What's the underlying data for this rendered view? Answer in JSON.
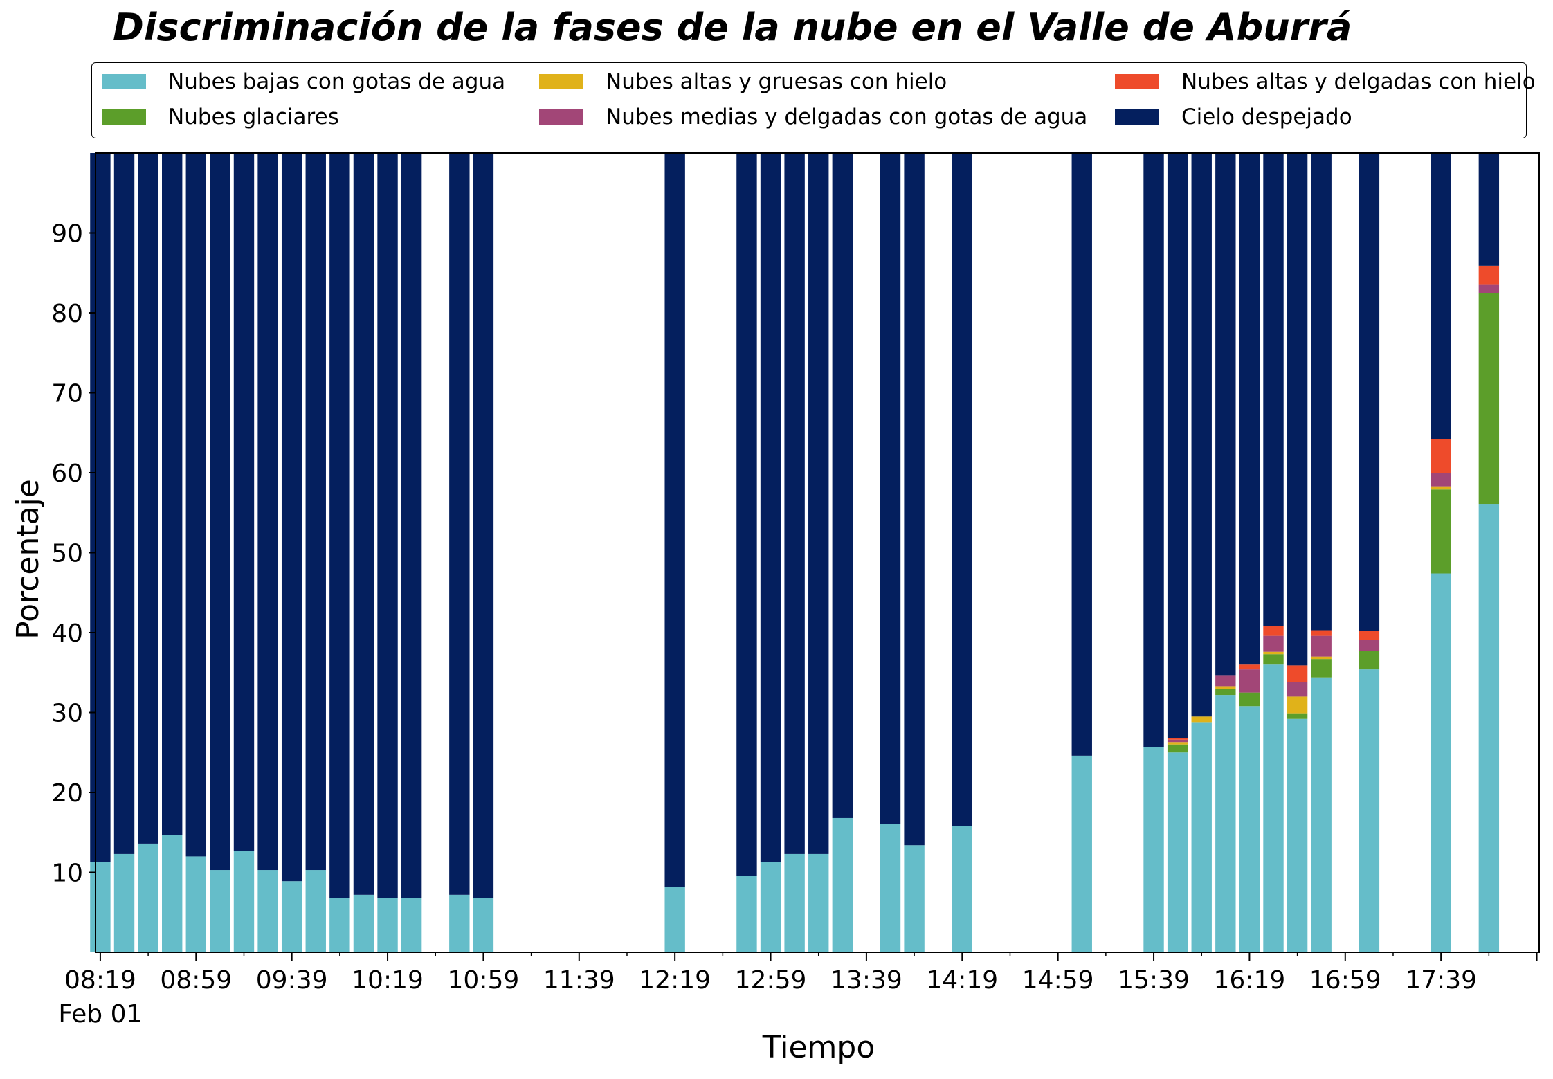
{
  "chart_data": {
    "type": "bar",
    "stacked": true,
    "title": "Discriminación de la fases de la nube en el Valle de Aburrá",
    "xlabel": "Tiempo",
    "ylabel": "Porcentaje",
    "ylim": [
      0,
      100
    ],
    "yticks": [
      10,
      20,
      30,
      40,
      50,
      60,
      70,
      80,
      90
    ],
    "x_ticks": [
      "08:19",
      "08:59",
      "09:39",
      "10:19",
      "10:59",
      "11:39",
      "12:19",
      "12:59",
      "13:39",
      "14:19",
      "14:59",
      "15:39",
      "16:19",
      "16:59",
      "17:39"
    ],
    "x_date_label": "Feb 01",
    "x_range_minutes": [
      "08:17",
      "18:20"
    ],
    "legend_position": "top",
    "categories": [
      "08:19",
      "08:29",
      "08:39",
      "08:49",
      "08:59",
      "09:09",
      "09:19",
      "09:29",
      "09:39",
      "09:49",
      "09:59",
      "10:09",
      "10:19",
      "10:29",
      "10:49",
      "10:59",
      "12:19",
      "12:49",
      "12:59",
      "13:09",
      "13:19",
      "13:29",
      "13:49",
      "13:59",
      "14:19",
      "15:09",
      "15:39",
      "15:49",
      "15:59",
      "16:09",
      "16:19",
      "16:29",
      "16:39",
      "16:49",
      "17:09",
      "17:39",
      "17:59"
    ],
    "series": [
      {
        "name": "Nubes bajas con gotas de agua",
        "color": "#65BDC9",
        "values": [
          11.3,
          12.3,
          13.6,
          14.7,
          12,
          10.3,
          12.7,
          10.3,
          8.9,
          10.3,
          6.8,
          7.2,
          6.8,
          6.8,
          7.2,
          6.8,
          8.2,
          9.6,
          11.3,
          12.3,
          12.3,
          16.8,
          16.1,
          13.4,
          15.8,
          24.6,
          25.7,
          25,
          28.8,
          32.2,
          30.8,
          36,
          29.2,
          34.4,
          35.4,
          47.4,
          56.1
        ]
      },
      {
        "name": "Nubes glaciares",
        "color": "#5C9E2A",
        "values": [
          0,
          0,
          0,
          0,
          0,
          0,
          0,
          0,
          0,
          0,
          0,
          0,
          0,
          0,
          0,
          0,
          0,
          0,
          0,
          0,
          0,
          0,
          0,
          0,
          0,
          0,
          0,
          1,
          0,
          0.7,
          1.7,
          1.3,
          0.7,
          2.3,
          2.3,
          10.5,
          26.4
        ]
      },
      {
        "name": "Nubes altas y gruesas con hielo",
        "color": "#E0B21A",
        "values": [
          0,
          0,
          0,
          0,
          0,
          0,
          0,
          0,
          0,
          0,
          0,
          0,
          0,
          0,
          0,
          0,
          0,
          0,
          0,
          0,
          0,
          0,
          0,
          0,
          0,
          0,
          0,
          0.3,
          0.7,
          0.4,
          0,
          0.3,
          2.1,
          0.3,
          0,
          0.4,
          0
        ]
      },
      {
        "name": "Nubes medias y delgadas con gotas de agua",
        "color": "#A24677",
        "values": [
          0,
          0,
          0,
          0,
          0,
          0,
          0,
          0,
          0,
          0,
          0,
          0,
          0,
          0,
          0,
          0,
          0,
          0,
          0,
          0,
          0,
          0,
          0,
          0,
          0,
          0,
          0,
          0.3,
          0,
          1.3,
          2.9,
          2,
          1.8,
          2.6,
          1.4,
          1.7,
          1
        ]
      },
      {
        "name": "Nubes altas y delgadas con hielo",
        "color": "#EE4B2B",
        "values": [
          0,
          0,
          0,
          0,
          0,
          0,
          0,
          0,
          0,
          0,
          0,
          0,
          0,
          0,
          0,
          0,
          0,
          0,
          0,
          0,
          0,
          0,
          0,
          0,
          0,
          0,
          0,
          0.2,
          0,
          0,
          0.6,
          1.2,
          2.1,
          0.7,
          1.1,
          4.2,
          2.4
        ]
      },
      {
        "name": "Cielo despejado",
        "color": "#041F5E",
        "values": [
          88.7,
          87.7,
          86.4,
          85.3,
          88,
          89.7,
          87.3,
          89.7,
          91.1,
          89.7,
          93.2,
          92.8,
          93.2,
          93.2,
          92.8,
          93.2,
          91.8,
          90.4,
          88.7,
          87.7,
          87.7,
          83.2,
          83.9,
          86.6,
          84.2,
          75.4,
          74.3,
          73.2,
          70.5,
          65.4,
          64,
          59.2,
          64.1,
          59.7,
          59.8,
          35.8,
          14.1
        ]
      }
    ]
  }
}
